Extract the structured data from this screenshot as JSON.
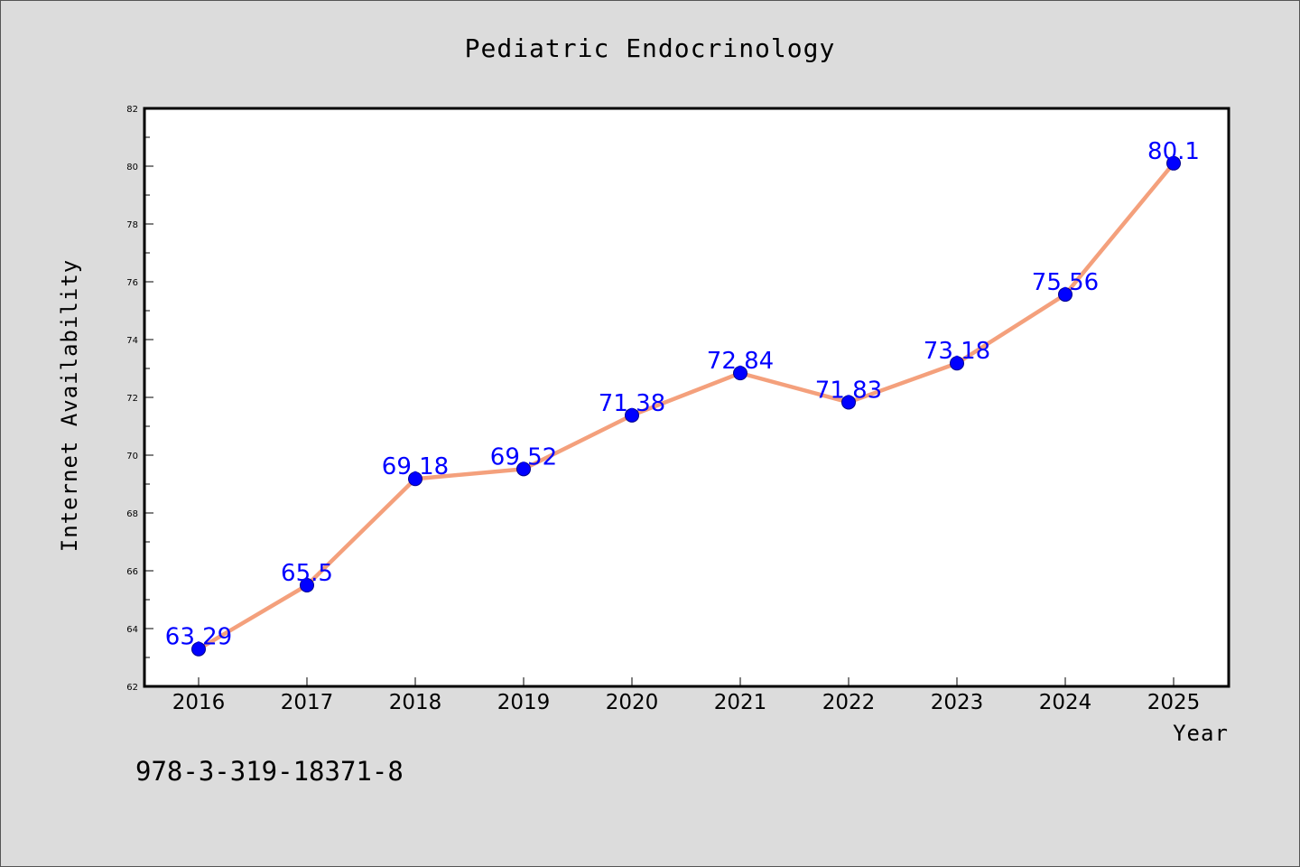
{
  "chart_data": {
    "type": "line",
    "title": "Pediatric Endocrinology",
    "xlabel": "Year",
    "ylabel": "Internet Availability",
    "categories": [
      "2016",
      "2017",
      "2018",
      "2019",
      "2020",
      "2021",
      "2022",
      "2023",
      "2024",
      "2025"
    ],
    "series": [
      {
        "values": [
          63.29,
          65.5,
          69.18,
          69.52,
          71.38,
          72.84,
          71.83,
          73.18,
          75.56,
          80.1
        ],
        "data_labels": [
          "63.29",
          "65.5",
          "69.18",
          "69.52",
          "71.38",
          "72.84",
          "71.83",
          "73.18",
          "75.56",
          "80.1"
        ],
        "line_color": "#f4a07c",
        "marker_color": "#0000ff"
      }
    ],
    "ylim": [
      62,
      82
    ],
    "yticks": [
      "62",
      "64",
      "66",
      "68",
      "70",
      "72",
      "74",
      "76",
      "78",
      "80",
      "82"
    ],
    "grid": false,
    "legend": "none"
  },
  "footer": {
    "isbn": "978-3-319-18371-8"
  },
  "colors": {
    "background": "#dcdcdc",
    "plot_background": "#ffffff"
  }
}
